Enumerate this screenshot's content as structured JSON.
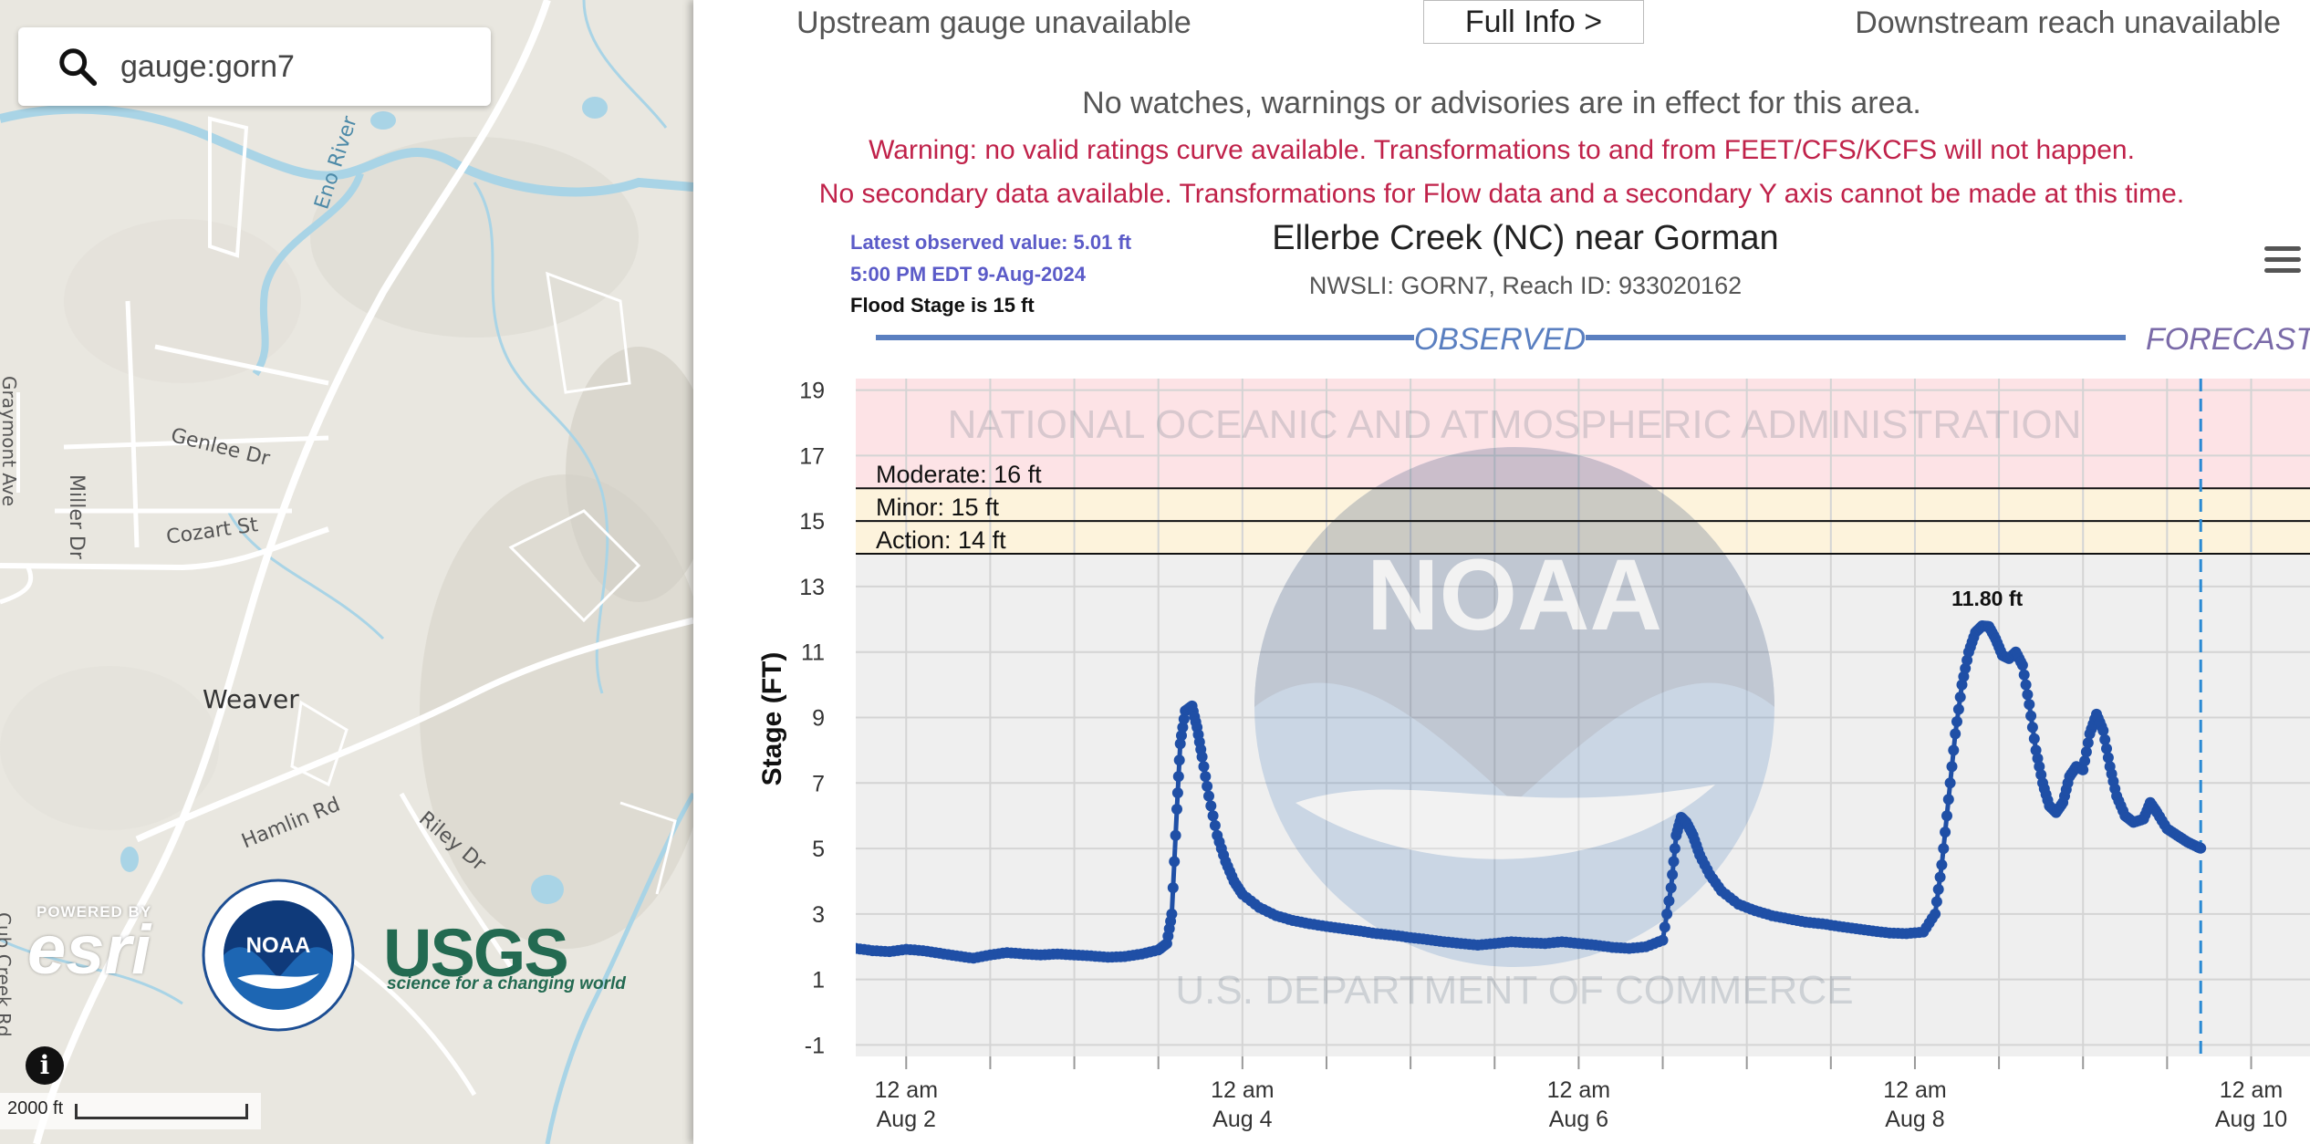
{
  "map": {
    "search": {
      "value": "gauge:gorn7",
      "icon": "search-icon"
    },
    "place_label": "Weaver",
    "street_labels": [
      "Genlee Dr",
      "Miller Dr",
      "Cozart St",
      "Hamlin Rd",
      "Riley Dr",
      "Eno River",
      "Graymont Ave",
      "Cub Creek Rd"
    ],
    "scale_label": "2000 ft",
    "logos": {
      "esri": {
        "powered": "POWERED BY",
        "name": "esri"
      },
      "usgs": {
        "name": "USGS",
        "tagline": "science for a changing world"
      }
    }
  },
  "panel": {
    "upstream": "Upstream gauge unavailable",
    "full_info_button": "Full Info >",
    "downstream": "Downstream reach unavailable",
    "no_watches": "No watches, warnings or advisories are in effect for this area.",
    "warning1": "Warning: no valid ratings curve available. Transformations to and from FEET/CFS/KCFS will not happen.",
    "warning2": "No secondary data available. Transformations for Flow data and a secondary Y axis cannot be made at this time."
  },
  "chart_data": {
    "type": "line",
    "title": "Ellerbe Creek (NC) near Gorman",
    "subtitle": "NWSLI: GORN7, Reach ID: 933020162",
    "latest_observed": "Latest observed value: 5.01 ft",
    "latest_time": "5:00 PM EDT 9-Aug-2024",
    "flood_stage_text": "Flood Stage is 15 ft",
    "observed_label": "OBSERVED",
    "forecast_label": "FORECAST",
    "ylabel": "Stage (FT)",
    "ylim": [
      -1,
      20
    ],
    "yticks": [
      -1,
      1,
      3,
      5,
      7,
      9,
      11,
      13,
      15,
      17,
      19
    ],
    "xlim_days": [
      1.7,
      10.35
    ],
    "xticks": [
      {
        "day": 2,
        "time": "12 am",
        "date": "Aug 2"
      },
      {
        "day": 4,
        "time": "12 am",
        "date": "Aug 4"
      },
      {
        "day": 6,
        "time": "12 am",
        "date": "Aug 6"
      },
      {
        "day": 8,
        "time": "12 am",
        "date": "Aug 8"
      },
      {
        "day": 10,
        "time": "12 am",
        "date": "Aug 10"
      }
    ],
    "now_day": 9.7,
    "thresholds": [
      {
        "name": "Action: 14 ft",
        "value": 14
      },
      {
        "name": "Minor: 15 ft",
        "value": 15
      },
      {
        "name": "Moderate: 16 ft",
        "value": 16
      }
    ],
    "peak_label": "11.80 ft",
    "peak": {
      "day": 8.43,
      "value": 11.8
    },
    "series": [
      {
        "color": "#1f4fa6",
        "points": [
          [
            1.7,
            1.95
          ],
          [
            1.8,
            1.88
          ],
          [
            1.9,
            1.85
          ],
          [
            2.0,
            1.92
          ],
          [
            2.1,
            1.88
          ],
          [
            2.2,
            1.8
          ],
          [
            2.3,
            1.72
          ],
          [
            2.4,
            1.65
          ],
          [
            2.5,
            1.75
          ],
          [
            2.6,
            1.82
          ],
          [
            2.7,
            1.78
          ],
          [
            2.8,
            1.75
          ],
          [
            2.9,
            1.78
          ],
          [
            3.0,
            1.75
          ],
          [
            3.1,
            1.72
          ],
          [
            3.2,
            1.68
          ],
          [
            3.3,
            1.7
          ],
          [
            3.4,
            1.78
          ],
          [
            3.5,
            1.9
          ],
          [
            3.55,
            2.1
          ],
          [
            3.58,
            3.0
          ],
          [
            3.61,
            6.2
          ],
          [
            3.63,
            8.2
          ],
          [
            3.66,
            9.2
          ],
          [
            3.7,
            9.35
          ],
          [
            3.73,
            8.7
          ],
          [
            3.76,
            7.8
          ],
          [
            3.8,
            6.6
          ],
          [
            3.85,
            5.4
          ],
          [
            3.9,
            4.6
          ],
          [
            3.95,
            4.0
          ],
          [
            4.0,
            3.6
          ],
          [
            4.1,
            3.2
          ],
          [
            4.2,
            2.95
          ],
          [
            4.3,
            2.8
          ],
          [
            4.4,
            2.7
          ],
          [
            4.5,
            2.62
          ],
          [
            4.6,
            2.55
          ],
          [
            4.7,
            2.48
          ],
          [
            4.8,
            2.4
          ],
          [
            4.9,
            2.35
          ],
          [
            5.0,
            2.28
          ],
          [
            5.1,
            2.22
          ],
          [
            5.2,
            2.15
          ],
          [
            5.3,
            2.1
          ],
          [
            5.4,
            2.05
          ],
          [
            5.5,
            2.1
          ],
          [
            5.6,
            2.15
          ],
          [
            5.7,
            2.12
          ],
          [
            5.8,
            2.1
          ],
          [
            5.9,
            2.15
          ],
          [
            6.0,
            2.1
          ],
          [
            6.1,
            2.05
          ],
          [
            6.2,
            1.98
          ],
          [
            6.3,
            1.95
          ],
          [
            6.4,
            2.0
          ],
          [
            6.5,
            2.2
          ],
          [
            6.55,
            3.8
          ],
          [
            6.58,
            5.4
          ],
          [
            6.61,
            5.95
          ],
          [
            6.64,
            5.8
          ],
          [
            6.68,
            5.4
          ],
          [
            6.72,
            4.8
          ],
          [
            6.78,
            4.2
          ],
          [
            6.85,
            3.7
          ],
          [
            6.95,
            3.3
          ],
          [
            7.05,
            3.1
          ],
          [
            7.15,
            2.95
          ],
          [
            7.25,
            2.85
          ],
          [
            7.35,
            2.75
          ],
          [
            7.45,
            2.7
          ],
          [
            7.55,
            2.62
          ],
          [
            7.65,
            2.55
          ],
          [
            7.75,
            2.48
          ],
          [
            7.85,
            2.42
          ],
          [
            7.95,
            2.4
          ],
          [
            8.05,
            2.45
          ],
          [
            8.12,
            3.0
          ],
          [
            8.16,
            4.5
          ],
          [
            8.2,
            6.5
          ],
          [
            8.24,
            8.5
          ],
          [
            8.28,
            10.0
          ],
          [
            8.32,
            11.0
          ],
          [
            8.36,
            11.6
          ],
          [
            8.4,
            11.8
          ],
          [
            8.44,
            11.78
          ],
          [
            8.48,
            11.4
          ],
          [
            8.52,
            10.9
          ],
          [
            8.56,
            10.8
          ],
          [
            8.6,
            11.0
          ],
          [
            8.64,
            10.6
          ],
          [
            8.68,
            9.4
          ],
          [
            8.72,
            8.0
          ],
          [
            8.76,
            7.0
          ],
          [
            8.8,
            6.3
          ],
          [
            8.84,
            6.1
          ],
          [
            8.88,
            6.4
          ],
          [
            8.92,
            7.2
          ],
          [
            8.96,
            7.5
          ],
          [
            9.0,
            7.4
          ],
          [
            9.04,
            8.5
          ],
          [
            9.08,
            9.1
          ],
          [
            9.12,
            8.6
          ],
          [
            9.16,
            7.5
          ],
          [
            9.2,
            6.6
          ],
          [
            9.25,
            6.0
          ],
          [
            9.3,
            5.8
          ],
          [
            9.36,
            5.9
          ],
          [
            9.4,
            6.4
          ],
          [
            9.44,
            6.1
          ],
          [
            9.5,
            5.6
          ],
          [
            9.56,
            5.4
          ],
          [
            9.62,
            5.2
          ],
          [
            9.68,
            5.05
          ],
          [
            9.7,
            5.01
          ]
        ]
      }
    ]
  }
}
